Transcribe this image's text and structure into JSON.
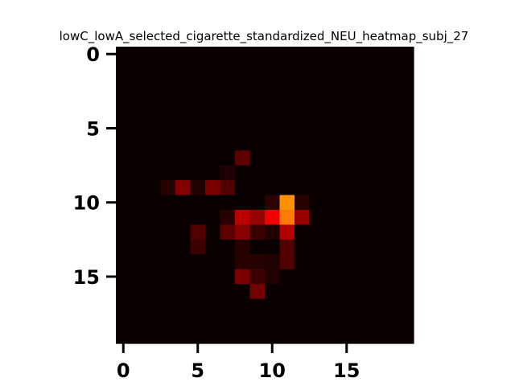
{
  "chart_data": {
    "type": "heatmap",
    "title": "lowC_lowA_selected_cigarette_standardized_NEU_heatmap_subj_27",
    "xlabel": "",
    "ylabel": "",
    "rows": 20,
    "cols": 20,
    "xlim": [
      -0.5,
      19.5
    ],
    "ylim": [
      19.5,
      -0.5
    ],
    "x_ticks": [
      0,
      5,
      10,
      15
    ],
    "y_ticks": [
      0,
      5,
      10,
      15
    ],
    "x_tick_labels": [
      "0",
      "5",
      "10",
      "15"
    ],
    "y_tick_labels": [
      "0",
      "5",
      "10",
      "15"
    ],
    "colormap": "hot",
    "value_range": [
      0,
      1
    ],
    "grid": false,
    "cells": [
      {
        "row": 7,
        "col": 8,
        "value": 0.12
      },
      {
        "row": 8,
        "col": 7,
        "value": 0.03
      },
      {
        "row": 9,
        "col": 3,
        "value": 0.04
      },
      {
        "row": 9,
        "col": 4,
        "value": 0.17
      },
      {
        "row": 9,
        "col": 5,
        "value": 0.03
      },
      {
        "row": 9,
        "col": 6,
        "value": 0.16
      },
      {
        "row": 9,
        "col": 7,
        "value": 0.1
      },
      {
        "row": 10,
        "col": 10,
        "value": 0.05
      },
      {
        "row": 10,
        "col": 11,
        "value": 0.58
      },
      {
        "row": 10,
        "col": 12,
        "value": 0.04
      },
      {
        "row": 11,
        "col": 7,
        "value": 0.04
      },
      {
        "row": 11,
        "col": 8,
        "value": 0.25
      },
      {
        "row": 11,
        "col": 9,
        "value": 0.2
      },
      {
        "row": 11,
        "col": 10,
        "value": 0.33
      },
      {
        "row": 11,
        "col": 11,
        "value": 0.55
      },
      {
        "row": 11,
        "col": 12,
        "value": 0.2
      },
      {
        "row": 12,
        "col": 5,
        "value": 0.1
      },
      {
        "row": 12,
        "col": 7,
        "value": 0.12
      },
      {
        "row": 12,
        "col": 8,
        "value": 0.18
      },
      {
        "row": 12,
        "col": 9,
        "value": 0.07
      },
      {
        "row": 12,
        "col": 10,
        "value": 0.03
      },
      {
        "row": 12,
        "col": 11,
        "value": 0.24
      },
      {
        "row": 13,
        "col": 5,
        "value": 0.07
      },
      {
        "row": 13,
        "col": 8,
        "value": 0.04
      },
      {
        "row": 13,
        "col": 11,
        "value": 0.1
      },
      {
        "row": 14,
        "col": 8,
        "value": 0.04
      },
      {
        "row": 14,
        "col": 9,
        "value": 0.04
      },
      {
        "row": 14,
        "col": 10,
        "value": 0.03
      },
      {
        "row": 14,
        "col": 11,
        "value": 0.1
      },
      {
        "row": 15,
        "col": 8,
        "value": 0.16
      },
      {
        "row": 15,
        "col": 9,
        "value": 0.07
      },
      {
        "row": 15,
        "col": 10,
        "value": 0.03
      },
      {
        "row": 16,
        "col": 9,
        "value": 0.15
      }
    ]
  }
}
